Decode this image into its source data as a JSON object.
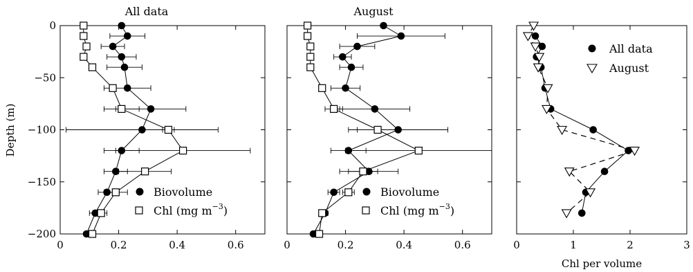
{
  "y_axis_label": "Depth (m)",
  "chart_data": [
    {
      "type": "line",
      "title": "All data",
      "xlabel": "",
      "ylabel": "Depth (m)",
      "xlim": [
        0,
        0.7
      ],
      "ylim": [
        0,
        -200
      ],
      "xticks": [
        "0",
        "0.2",
        "0.4",
        "0.6"
      ],
      "yticks": [
        "0",
        "−50",
        "−100",
        "−150",
        "−200"
      ],
      "legend": {
        "position": "bottom-right",
        "entries": [
          {
            "label": "Biovolume",
            "marker": "filled-circle"
          },
          {
            "label": "Chl (mg m",
            "superscript": "−3",
            "suffix": ")",
            "marker": "open-square"
          }
        ]
      },
      "series": [
        {
          "name": "Biovolume",
          "marker": "filled-circle",
          "points": [
            {
              "depth": 0,
              "value": 0.21,
              "err": 0
            },
            {
              "depth": -10,
              "value": 0.23,
              "err": 0.06
            },
            {
              "depth": -20,
              "value": 0.18,
              "err": 0.04
            },
            {
              "depth": -30,
              "value": 0.21,
              "err": 0.05
            },
            {
              "depth": -40,
              "value": 0.22,
              "err": 0.06
            },
            {
              "depth": -60,
              "value": 0.23,
              "err": 0.08
            },
            {
              "depth": -80,
              "value": 0.31,
              "err": 0.12
            },
            {
              "depth": -100,
              "value": 0.28,
              "err": 0.26
            },
            {
              "depth": -120,
              "value": 0.21,
              "err": 0.06
            },
            {
              "depth": -140,
              "value": 0.19,
              "err": 0.04
            },
            {
              "depth": -160,
              "value": 0.16,
              "err": 0.03
            },
            {
              "depth": -180,
              "value": 0.12,
              "err": 0.02
            },
            {
              "depth": -200,
              "value": 0.09,
              "err": 0
            }
          ]
        },
        {
          "name": "Chl (mg m−3)",
          "marker": "open-square",
          "points": [
            {
              "depth": 0,
              "value": 0.08,
              "err": 0
            },
            {
              "depth": -10,
              "value": 0.08,
              "err": 0
            },
            {
              "depth": -20,
              "value": 0.09,
              "err": 0
            },
            {
              "depth": -30,
              "value": 0.08,
              "err": 0
            },
            {
              "depth": -40,
              "value": 0.11,
              "err": 0
            },
            {
              "depth": -60,
              "value": 0.18,
              "err": 0
            },
            {
              "depth": -80,
              "value": 0.21,
              "err": 0.06
            },
            {
              "depth": -100,
              "value": 0.37,
              "err": 0.02
            },
            {
              "depth": -120,
              "value": 0.42,
              "err": 0.23
            },
            {
              "depth": -140,
              "value": 0.29,
              "err": 0.09
            },
            {
              "depth": -160,
              "value": 0.19,
              "err": 0.04
            },
            {
              "depth": -180,
              "value": 0.14,
              "err": 0.02
            },
            {
              "depth": -200,
              "value": 0.11,
              "err": 0
            }
          ]
        }
      ]
    },
    {
      "type": "line",
      "title": "August",
      "xlabel": "",
      "xlim": [
        0,
        0.7
      ],
      "ylim": [
        0,
        -200
      ],
      "xticks": [
        "0",
        "0.2",
        "0.4",
        "0.6"
      ],
      "legend": {
        "position": "bottom-right",
        "entries": [
          {
            "label": "Biovolume",
            "marker": "filled-circle"
          },
          {
            "label": "Chl (mg m",
            "superscript": "−3",
            "suffix": ")",
            "marker": "open-square"
          }
        ]
      },
      "series": [
        {
          "name": "Biovolume",
          "marker": "filled-circle",
          "points": [
            {
              "depth": 0,
              "value": 0.33,
              "err": 0
            },
            {
              "depth": -10,
              "value": 0.39,
              "err": 0.15
            },
            {
              "depth": -20,
              "value": 0.24,
              "err": 0.06
            },
            {
              "depth": -30,
              "value": 0.19,
              "err": 0.03
            },
            {
              "depth": -40,
              "value": 0.22,
              "err": 0.04
            },
            {
              "depth": -60,
              "value": 0.2,
              "err": 0.05
            },
            {
              "depth": -80,
              "value": 0.3,
              "err": 0.12
            },
            {
              "depth": -100,
              "value": 0.38,
              "err": 0.17
            },
            {
              "depth": -120,
              "value": 0.21,
              "err": 0.06
            },
            {
              "depth": -140,
              "value": 0.28,
              "err": 0.1
            },
            {
              "depth": -160,
              "value": 0.16,
              "err": 0.02
            },
            {
              "depth": -180,
              "value": 0.13,
              "err": 0.01
            },
            {
              "depth": -200,
              "value": 0.09,
              "err": 0
            }
          ]
        },
        {
          "name": "Chl (mg m−3)",
          "marker": "open-square",
          "points": [
            {
              "depth": 0,
              "value": 0.07,
              "err": 0
            },
            {
              "depth": -10,
              "value": 0.07,
              "err": 0
            },
            {
              "depth": -20,
              "value": 0.08,
              "err": 0
            },
            {
              "depth": -30,
              "value": 0.08,
              "err": 0
            },
            {
              "depth": -40,
              "value": 0.08,
              "err": 0
            },
            {
              "depth": -60,
              "value": 0.12,
              "err": 0
            },
            {
              "depth": -80,
              "value": 0.16,
              "err": 0.03
            },
            {
              "depth": -100,
              "value": 0.31,
              "err": 0.07
            },
            {
              "depth": -120,
              "value": 0.45,
              "err": 0.25
            },
            {
              "depth": -140,
              "value": 0.26,
              "err": 0.05
            },
            {
              "depth": -160,
              "value": 0.21,
              "err": 0.02
            },
            {
              "depth": -180,
              "value": 0.12,
              "err": 0.01
            },
            {
              "depth": -200,
              "value": 0.11,
              "err": 0
            }
          ]
        }
      ]
    },
    {
      "type": "scatter",
      "title": "",
      "xlabel": "Chl per volume",
      "xlim": [
        0,
        3
      ],
      "ylim": [
        0,
        -200
      ],
      "xticks": [
        "0",
        "1",
        "2",
        "3"
      ],
      "legend": {
        "position": "top-right",
        "entries": [
          {
            "label": "All data",
            "marker": "filled-circle"
          },
          {
            "label": "August",
            "marker": "open-triangle"
          }
        ]
      },
      "series": [
        {
          "name": "All data",
          "marker": "filled-circle",
          "points": [
            {
              "depth": -10,
              "value": 0.33
            },
            {
              "depth": -20,
              "value": 0.45
            },
            {
              "depth": -30,
              "value": 0.35
            },
            {
              "depth": -40,
              "value": 0.43
            },
            {
              "depth": -60,
              "value": 0.5
            },
            {
              "depth": -80,
              "value": 0.6
            },
            {
              "depth": -100,
              "value": 1.35
            },
            {
              "depth": -120,
              "value": 1.97
            },
            {
              "depth": -140,
              "value": 1.55
            },
            {
              "depth": -160,
              "value": 1.22
            },
            {
              "depth": -180,
              "value": 1.15
            }
          ]
        },
        {
          "name": "August",
          "marker": "open-triangle",
          "dashed": true,
          "points": [
            {
              "depth": 0,
              "value": 0.3
            },
            {
              "depth": -10,
              "value": 0.2
            },
            {
              "depth": -20,
              "value": 0.33
            },
            {
              "depth": -30,
              "value": 0.4
            },
            {
              "depth": -40,
              "value": 0.38
            },
            {
              "depth": -60,
              "value": 0.55
            },
            {
              "depth": -80,
              "value": 0.53
            },
            {
              "depth": -100,
              "value": 0.8
            },
            {
              "depth": -120,
              "value": 2.08
            },
            {
              "depth": -140,
              "value": 0.93
            },
            {
              "depth": -160,
              "value": 1.3
            },
            {
              "depth": -180,
              "value": 0.88
            }
          ]
        }
      ]
    }
  ]
}
